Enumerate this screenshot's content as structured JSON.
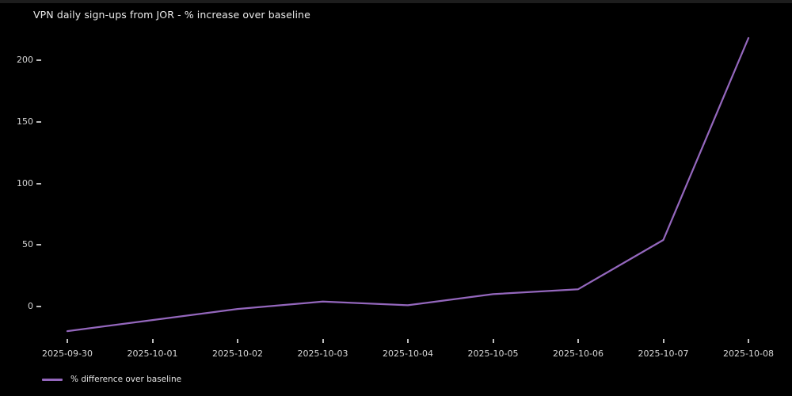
{
  "page": {
    "background": "#000000",
    "text_color": "#e8e8e8"
  },
  "chart_data": {
    "type": "line",
    "title": "VPN daily sign-ups from JOR - % increase over baseline",
    "categories": [
      "2025-09-30",
      "2025-10-01",
      "2025-10-02",
      "2025-10-03",
      "2025-10-04",
      "2025-10-05",
      "2025-10-06",
      "2025-10-07",
      "2025-10-08"
    ],
    "series": [
      {
        "name": "% difference over baseline",
        "color": "#9467bd",
        "values": [
          -20,
          -11,
          -2,
          4,
          1,
          10,
          14,
          54,
          218
        ]
      }
    ],
    "xlabel": "",
    "ylabel": "",
    "yticks": [
      0,
      50,
      100,
      150,
      200
    ],
    "ylim": [
      -25,
      230
    ],
    "grid": false,
    "legend_position": "bottom-left-below-axis",
    "background": "#000000"
  }
}
